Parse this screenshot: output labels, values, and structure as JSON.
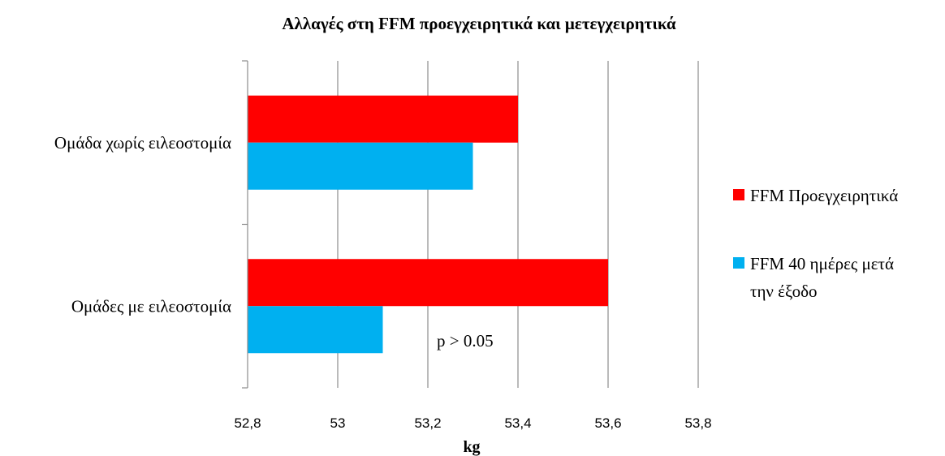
{
  "chart_data": {
    "type": "bar",
    "orientation": "horizontal",
    "title": "Αλλαγές στη FFM προεγχειρητικά και μετεγχειρητικά",
    "xlabel": "kg",
    "ylabel": "",
    "xlim": [
      52.8,
      53.8
    ],
    "ticks": [
      "52,8",
      "53",
      "53,2",
      "53,4",
      "53,6",
      "53,8"
    ],
    "tick_values": [
      52.8,
      53.0,
      53.2,
      53.4,
      53.6,
      53.8
    ],
    "categories": [
      "Ομάδα χωρίς ειλεοστομία",
      "Ομάδες με ειλεοστομία"
    ],
    "series": [
      {
        "name": "FFM Προεγχειρητικά",
        "color": "#ff0000",
        "values": [
          53.4,
          53.6
        ]
      },
      {
        "name": "FFM 40 ημέρες μετά την έξοδο",
        "name_lines": [
          "FFM 40 ημέρες μετά",
          "την έξοδο"
        ],
        "color": "#00b0f0",
        "values": [
          53.3,
          53.1
        ]
      }
    ],
    "grid": true,
    "legend_position": "right",
    "annotation": "p > 0.05"
  }
}
